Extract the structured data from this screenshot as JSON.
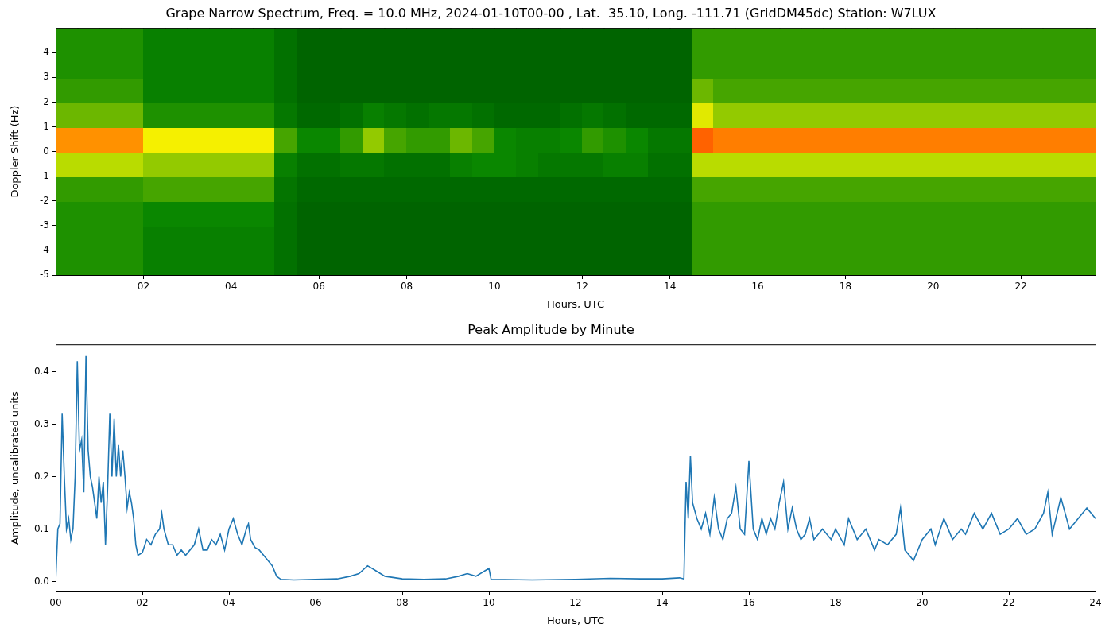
{
  "chart_data": [
    {
      "type": "heatmap",
      "title": "Grape Narrow Spectrum, Freq. = 10.0 MHz, 2024-01-10T00-00 , Lat.  35.10, Long. -111.71 (GridDM45dc) Station: W7LUX",
      "x_label": "Hours, UTC",
      "y_label": "Doppler Shift (Hz)",
      "xlim": [
        0,
        23.7
      ],
      "xticks": [
        {
          "value": 2,
          "label": "02"
        },
        {
          "value": 4,
          "label": "04"
        },
        {
          "value": 6,
          "label": "06"
        },
        {
          "value": 8,
          "label": "08"
        },
        10,
        12,
        14,
        16,
        18,
        20,
        22
      ],
      "ylim": [
        -5,
        5
      ],
      "yticks": [
        -5,
        -4,
        -3,
        -2,
        -1,
        0,
        1,
        2,
        3,
        4
      ],
      "grid": false,
      "x_edges": [
        0,
        0.5,
        1,
        1.5,
        2,
        2.5,
        3,
        3.5,
        4,
        4.5,
        5,
        5.5,
        6,
        6.5,
        7,
        7.5,
        8,
        8.5,
        9,
        9.5,
        10,
        10.5,
        11,
        11.5,
        12,
        12.5,
        13,
        13.5,
        14,
        14.5,
        15,
        15.5,
        16,
        16.5,
        17,
        17.5,
        18,
        18.5,
        19,
        19.5,
        20,
        20.5,
        21,
        21.5,
        22,
        22.5,
        23,
        23.5,
        24
      ],
      "y_edges": [
        -5,
        -4,
        -3,
        -2,
        -1,
        0,
        1,
        2,
        3,
        4,
        5
      ],
      "cells": [
        [
          0.35,
          0.35,
          0.35,
          0.35,
          0.25,
          0.25,
          0.25,
          0.25,
          0.25,
          0.25,
          0.15,
          0.08,
          0.08,
          0.08,
          0.08,
          0.08,
          0.08,
          0.08,
          0.08,
          0.08,
          0.08,
          0.08,
          0.08,
          0.08,
          0.08,
          0.08,
          0.08,
          0.08,
          0.08,
          0.4,
          0.4,
          0.4,
          0.4,
          0.4,
          0.4,
          0.4,
          0.4,
          0.4,
          0.4,
          0.4,
          0.4,
          0.4,
          0.4,
          0.4,
          0.4,
          0.4,
          0.4,
          0.4
        ],
        [
          0.35,
          0.35,
          0.35,
          0.35,
          0.25,
          0.25,
          0.25,
          0.25,
          0.25,
          0.25,
          0.15,
          0.08,
          0.08,
          0.08,
          0.08,
          0.08,
          0.08,
          0.08,
          0.08,
          0.08,
          0.08,
          0.08,
          0.08,
          0.08,
          0.08,
          0.08,
          0.08,
          0.08,
          0.08,
          0.4,
          0.4,
          0.4,
          0.4,
          0.4,
          0.4,
          0.4,
          0.4,
          0.4,
          0.4,
          0.4,
          0.4,
          0.4,
          0.4,
          0.4,
          0.4,
          0.4,
          0.4,
          0.4
        ],
        [
          0.35,
          0.35,
          0.35,
          0.35,
          0.3,
          0.3,
          0.3,
          0.3,
          0.3,
          0.3,
          0.15,
          0.08,
          0.08,
          0.08,
          0.08,
          0.08,
          0.08,
          0.08,
          0.08,
          0.08,
          0.08,
          0.08,
          0.08,
          0.08,
          0.08,
          0.08,
          0.08,
          0.08,
          0.08,
          0.4,
          0.4,
          0.4,
          0.4,
          0.4,
          0.4,
          0.4,
          0.4,
          0.4,
          0.4,
          0.4,
          0.4,
          0.4,
          0.4,
          0.4,
          0.4,
          0.4,
          0.4,
          0.4
        ],
        [
          0.4,
          0.4,
          0.4,
          0.4,
          0.45,
          0.45,
          0.45,
          0.45,
          0.45,
          0.45,
          0.18,
          0.1,
          0.1,
          0.1,
          0.1,
          0.1,
          0.1,
          0.1,
          0.1,
          0.1,
          0.1,
          0.1,
          0.1,
          0.1,
          0.1,
          0.1,
          0.1,
          0.1,
          0.1,
          0.45,
          0.45,
          0.45,
          0.45,
          0.45,
          0.45,
          0.45,
          0.45,
          0.45,
          0.45,
          0.45,
          0.45,
          0.45,
          0.45,
          0.45,
          0.45,
          0.45,
          0.45,
          0.45
        ],
        [
          0.6,
          0.6,
          0.6,
          0.6,
          0.55,
          0.55,
          0.55,
          0.55,
          0.55,
          0.55,
          0.25,
          0.15,
          0.15,
          0.2,
          0.2,
          0.15,
          0.15,
          0.15,
          0.25,
          0.3,
          0.3,
          0.25,
          0.2,
          0.2,
          0.2,
          0.25,
          0.25,
          0.15,
          0.15,
          0.6,
          0.6,
          0.6,
          0.6,
          0.6,
          0.6,
          0.6,
          0.6,
          0.6,
          0.6,
          0.6,
          0.6,
          0.6,
          0.6,
          0.6,
          0.6,
          0.6,
          0.6,
          0.6
        ],
        [
          0.9,
          0.9,
          0.9,
          0.9,
          0.75,
          0.75,
          0.75,
          0.75,
          0.75,
          0.75,
          0.45,
          0.3,
          0.3,
          0.4,
          0.55,
          0.45,
          0.4,
          0.4,
          0.5,
          0.45,
          0.3,
          0.25,
          0.25,
          0.3,
          0.4,
          0.35,
          0.3,
          0.2,
          0.2,
          0.95,
          0.92,
          0.92,
          0.92,
          0.92,
          0.92,
          0.92,
          0.92,
          0.92,
          0.92,
          0.92,
          0.92,
          0.92,
          0.92,
          0.92,
          0.92,
          0.92,
          0.92,
          0.92
        ],
        [
          0.5,
          0.5,
          0.5,
          0.5,
          0.35,
          0.35,
          0.35,
          0.35,
          0.35,
          0.35,
          0.2,
          0.1,
          0.1,
          0.15,
          0.25,
          0.2,
          0.15,
          0.2,
          0.2,
          0.15,
          0.1,
          0.1,
          0.1,
          0.15,
          0.2,
          0.15,
          0.1,
          0.1,
          0.1,
          0.7,
          0.55,
          0.55,
          0.55,
          0.55,
          0.55,
          0.55,
          0.55,
          0.55,
          0.55,
          0.55,
          0.55,
          0.55,
          0.55,
          0.55,
          0.55,
          0.55,
          0.55,
          0.55
        ],
        [
          0.4,
          0.4,
          0.4,
          0.4,
          0.25,
          0.25,
          0.25,
          0.25,
          0.25,
          0.25,
          0.15,
          0.08,
          0.08,
          0.08,
          0.08,
          0.08,
          0.08,
          0.08,
          0.08,
          0.08,
          0.08,
          0.08,
          0.08,
          0.08,
          0.08,
          0.08,
          0.08,
          0.08,
          0.08,
          0.5,
          0.45,
          0.45,
          0.45,
          0.45,
          0.45,
          0.45,
          0.45,
          0.45,
          0.45,
          0.45,
          0.45,
          0.45,
          0.45,
          0.45,
          0.45,
          0.45,
          0.45,
          0.45
        ],
        [
          0.35,
          0.35,
          0.35,
          0.35,
          0.25,
          0.25,
          0.25,
          0.25,
          0.25,
          0.25,
          0.15,
          0.08,
          0.08,
          0.08,
          0.08,
          0.08,
          0.08,
          0.08,
          0.08,
          0.08,
          0.08,
          0.08,
          0.08,
          0.08,
          0.08,
          0.08,
          0.08,
          0.08,
          0.08,
          0.4,
          0.4,
          0.4,
          0.4,
          0.4,
          0.4,
          0.4,
          0.4,
          0.4,
          0.4,
          0.4,
          0.4,
          0.4,
          0.4,
          0.4,
          0.4,
          0.4,
          0.4,
          0.4
        ],
        [
          0.35,
          0.35,
          0.35,
          0.35,
          0.25,
          0.25,
          0.25,
          0.25,
          0.25,
          0.25,
          0.15,
          0.08,
          0.08,
          0.08,
          0.08,
          0.08,
          0.08,
          0.08,
          0.08,
          0.08,
          0.08,
          0.08,
          0.08,
          0.08,
          0.08,
          0.08,
          0.08,
          0.08,
          0.08,
          0.4,
          0.4,
          0.4,
          0.4,
          0.4,
          0.4,
          0.4,
          0.4,
          0.4,
          0.4,
          0.4,
          0.4,
          0.4,
          0.4,
          0.4,
          0.4,
          0.4,
          0.4,
          0.4
        ]
      ]
    },
    {
      "type": "line",
      "title": "Peak Amplitude by Minute",
      "x_label": "Hours, UTC",
      "y_label": "Amplitude, uncalibrated units",
      "xlim": [
        0,
        24
      ],
      "xticks": [
        {
          "value": 0,
          "label": "00"
        },
        {
          "value": 2,
          "label": "02"
        },
        {
          "value": 4,
          "label": "04"
        },
        {
          "value": 6,
          "label": "06"
        },
        {
          "value": 8,
          "label": "08"
        },
        10,
        12,
        14,
        16,
        18,
        20,
        22,
        24
      ],
      "ylim": [
        -0.019,
        0.452
      ],
      "yticks": [
        {
          "value": 0,
          "label": "0.0"
        },
        0.1,
        0.2,
        0.3,
        0.4
      ],
      "grid": false,
      "color": "#1f77b4",
      "x": [
        0.0,
        0.05,
        0.1,
        0.15,
        0.2,
        0.25,
        0.3,
        0.35,
        0.4,
        0.45,
        0.5,
        0.55,
        0.6,
        0.65,
        0.7,
        0.75,
        0.8,
        0.85,
        0.9,
        0.95,
        1.0,
        1.05,
        1.1,
        1.15,
        1.2,
        1.25,
        1.3,
        1.35,
        1.4,
        1.45,
        1.5,
        1.55,
        1.6,
        1.65,
        1.7,
        1.75,
        1.8,
        1.85,
        1.9,
        2.0,
        2.1,
        2.2,
        2.3,
        2.4,
        2.45,
        2.5,
        2.6,
        2.7,
        2.8,
        2.9,
        3.0,
        3.1,
        3.2,
        3.3,
        3.4,
        3.5,
        3.6,
        3.7,
        3.8,
        3.9,
        4.0,
        4.1,
        4.2,
        4.3,
        4.4,
        4.45,
        4.5,
        4.6,
        4.7,
        4.8,
        4.9,
        5.0,
        5.1,
        5.2,
        5.5,
        6.0,
        6.5,
        6.8,
        7.0,
        7.2,
        7.4,
        7.6,
        8.0,
        8.5,
        9.0,
        9.3,
        9.5,
        9.7,
        9.9,
        10.0,
        10.05,
        11.0,
        12.0,
        12.8,
        13.5,
        14.0,
        14.4,
        14.5,
        14.55,
        14.6,
        14.65,
        14.7,
        14.8,
        14.9,
        15.0,
        15.1,
        15.2,
        15.3,
        15.4,
        15.5,
        15.6,
        15.7,
        15.8,
        15.9,
        16.0,
        16.1,
        16.2,
        16.3,
        16.4,
        16.5,
        16.6,
        16.7,
        16.8,
        16.9,
        17.0,
        17.1,
        17.2,
        17.3,
        17.4,
        17.5,
        17.7,
        17.9,
        18.0,
        18.2,
        18.3,
        18.5,
        18.7,
        18.9,
        19.0,
        19.2,
        19.4,
        19.5,
        19.6,
        19.8,
        20.0,
        20.2,
        20.3,
        20.5,
        20.7,
        20.9,
        21.0,
        21.2,
        21.4,
        21.6,
        21.8,
        22.0,
        22.2,
        22.4,
        22.6,
        22.8,
        22.9,
        23.0,
        23.2,
        23.4,
        23.6,
        23.8,
        24.0
      ],
      "values": [
        0.0,
        0.1,
        0.11,
        0.32,
        0.2,
        0.1,
        0.12,
        0.08,
        0.1,
        0.2,
        0.42,
        0.25,
        0.27,
        0.17,
        0.43,
        0.25,
        0.2,
        0.18,
        0.15,
        0.12,
        0.2,
        0.15,
        0.19,
        0.07,
        0.18,
        0.32,
        0.2,
        0.31,
        0.2,
        0.26,
        0.2,
        0.25,
        0.2,
        0.14,
        0.17,
        0.15,
        0.12,
        0.07,
        0.05,
        0.055,
        0.08,
        0.07,
        0.09,
        0.1,
        0.13,
        0.1,
        0.07,
        0.07,
        0.05,
        0.06,
        0.05,
        0.06,
        0.07,
        0.1,
        0.06,
        0.06,
        0.08,
        0.07,
        0.09,
        0.06,
        0.1,
        0.12,
        0.09,
        0.07,
        0.1,
        0.11,
        0.08,
        0.065,
        0.06,
        0.05,
        0.04,
        0.03,
        0.01,
        0.004,
        0.003,
        0.004,
        0.005,
        0.01,
        0.015,
        0.03,
        0.02,
        0.01,
        0.005,
        0.004,
        0.005,
        0.01,
        0.015,
        0.01,
        0.02,
        0.025,
        0.004,
        0.003,
        0.004,
        0.006,
        0.005,
        0.005,
        0.007,
        0.005,
        0.19,
        0.12,
        0.24,
        0.15,
        0.12,
        0.1,
        0.13,
        0.09,
        0.16,
        0.1,
        0.08,
        0.12,
        0.13,
        0.18,
        0.1,
        0.09,
        0.23,
        0.1,
        0.08,
        0.12,
        0.09,
        0.12,
        0.1,
        0.15,
        0.19,
        0.1,
        0.14,
        0.1,
        0.08,
        0.09,
        0.12,
        0.08,
        0.1,
        0.08,
        0.1,
        0.07,
        0.12,
        0.08,
        0.1,
        0.06,
        0.08,
        0.07,
        0.09,
        0.14,
        0.06,
        0.04,
        0.08,
        0.1,
        0.07,
        0.12,
        0.08,
        0.1,
        0.09,
        0.13,
        0.1,
        0.13,
        0.09,
        0.1,
        0.12,
        0.09,
        0.1,
        0.13,
        0.17,
        0.09,
        0.16,
        0.1,
        0.12,
        0.14,
        0.12
      ]
    }
  ]
}
